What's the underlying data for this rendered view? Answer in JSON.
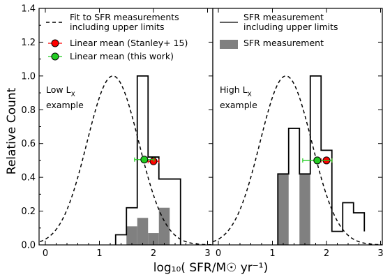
{
  "chart_data": {
    "type": "histogram",
    "ylabel": "Relative Count",
    "xlabel": "log₁₀( SFR/M☉ yr⁻¹)",
    "ylim": [
      0,
      1.4
    ],
    "yticks": [
      "0.0",
      "0.2",
      "0.4",
      "0.6",
      "0.8",
      "1.0",
      "1.2",
      "1.4"
    ],
    "xlim": [
      -0.1,
      3.0
    ],
    "xticks_left": [
      "0",
      "1",
      "2",
      "3"
    ],
    "xticks_right": [
      "0",
      "1",
      "2",
      "3"
    ],
    "colors": {
      "hist_fill": "#808080",
      "mean_stanley": "#ff0000",
      "mean_this_work": "#22cc22",
      "errbar_stanley": "#ff0000",
      "errbar_this_work": "#22cc22"
    },
    "panels": [
      {
        "annotation_line1": "Low L",
        "annotation_sub1": "X",
        "annotation_line2": "example",
        "legend": [
          {
            "kind": "dashed-line",
            "label_line1": "Fit to SFR measurements",
            "label_line2": "including upper limits"
          },
          {
            "kind": "marker-red",
            "label": "Linear mean (Stanley+ 15)"
          },
          {
            "kind": "marker-green",
            "label": "Linear mean (this work)"
          }
        ],
        "fit": {
          "mu": 1.25,
          "sigma": 0.48,
          "peak": 1.0
        },
        "step_hist": {
          "edges": [
            1.3,
            1.5,
            1.7,
            1.9,
            2.1,
            2.5
          ],
          "values": [
            0.06,
            0.22,
            1.0,
            0.52,
            0.39
          ]
        },
        "filled_hist": {
          "edges": [
            1.5,
            1.7,
            1.9,
            2.1,
            2.3
          ],
          "values": [
            0.11,
            0.16,
            0.07,
            0.22
          ]
        },
        "mean_stanley": {
          "x": 2.0,
          "y": 0.495,
          "xerr": 0.1
        },
        "mean_this_work": {
          "x": 1.83,
          "y": 0.505,
          "xerr": 0.18
        }
      },
      {
        "annotation_line1": "High L",
        "annotation_sub1": "X",
        "annotation_line2": "example",
        "legend": [
          {
            "kind": "solid-line",
            "label_line1": "SFR measurement",
            "label_line2": "including upper limits"
          },
          {
            "kind": "grey-box",
            "label": "SFR measurement"
          }
        ],
        "fit": {
          "mu": 1.25,
          "sigma": 0.48,
          "peak": 1.0
        },
        "step_hist": {
          "edges": [
            1.1,
            1.3,
            1.5,
            1.7,
            1.9,
            2.1,
            2.3,
            2.5,
            2.7
          ],
          "values": [
            0.42,
            0.69,
            0.42,
            1.0,
            0.56,
            0.08,
            0.25,
            0.19,
            0.08
          ]
        },
        "filled_hist": {
          "edges": [
            1.1,
            1.3,
            1.5,
            1.7,
            1.9,
            2.1,
            2.3,
            2.5,
            2.7
          ],
          "values": [
            0.42,
            0.0,
            0.42,
            0.0,
            0.0,
            0.0,
            0.0,
            0.0,
            0.08
          ]
        },
        "mean_stanley": {
          "x": 2.0,
          "y": 0.5,
          "xerr": 0.1
        },
        "mean_this_work": {
          "x": 1.83,
          "y": 0.5,
          "xerr": 0.27
        }
      }
    ]
  }
}
